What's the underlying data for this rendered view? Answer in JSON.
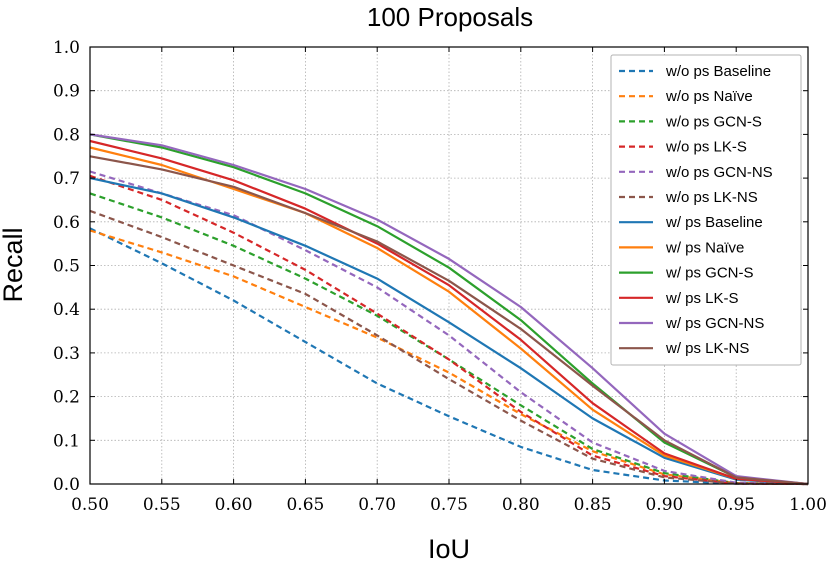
{
  "chart_data": {
    "type": "line",
    "title": "100 Proposals",
    "xlabel": "IoU",
    "ylabel": "Recall",
    "xlim": [
      0.5,
      1.0
    ],
    "ylim": [
      0.0,
      1.0
    ],
    "grid": true,
    "legend_position": "top-right",
    "x": [
      0.5,
      0.55,
      0.6,
      0.65,
      0.7,
      0.75,
      0.8,
      0.85,
      0.9,
      0.95,
      1.0
    ],
    "x_tick_labels": [
      "0.50",
      "0.55",
      "0.60",
      "0.65",
      "0.70",
      "0.75",
      "0.80",
      "0.85",
      "0.90",
      "0.95",
      "1.00"
    ],
    "y_ticks": [
      0.0,
      0.1,
      0.2,
      0.3,
      0.4,
      0.5,
      0.6,
      0.7,
      0.8,
      0.9,
      1.0
    ],
    "y_tick_labels": [
      "0.0",
      "0.1",
      "0.2",
      "0.3",
      "0.4",
      "0.5",
      "0.6",
      "0.7",
      "0.8",
      "0.9",
      "1.0"
    ],
    "series": [
      {
        "name": "w/o ps Baseline",
        "style": "dashed",
        "color": "#1f77b4",
        "values": [
          0.585,
          0.505,
          0.42,
          0.325,
          0.23,
          0.155,
          0.085,
          0.032,
          0.008,
          0.001,
          0.0
        ]
      },
      {
        "name": "w/o ps Naïve",
        "style": "dashed",
        "color": "#ff7f0e",
        "values": [
          0.58,
          0.53,
          0.475,
          0.405,
          0.335,
          0.255,
          0.16,
          0.075,
          0.022,
          0.002,
          0.0
        ]
      },
      {
        "name": "w/o ps GCN-S",
        "style": "dashed",
        "color": "#2ca02c",
        "values": [
          0.665,
          0.61,
          0.545,
          0.47,
          0.385,
          0.285,
          0.18,
          0.08,
          0.025,
          0.002,
          0.0
        ]
      },
      {
        "name": "w/o ps LK-S",
        "style": "dashed",
        "color": "#d62728",
        "values": [
          0.705,
          0.65,
          0.575,
          0.49,
          0.39,
          0.285,
          0.165,
          0.065,
          0.018,
          0.001,
          0.0
        ]
      },
      {
        "name": "w/o ps GCN-NS",
        "style": "dashed",
        "color": "#9467bd",
        "values": [
          0.715,
          0.665,
          0.615,
          0.535,
          0.45,
          0.34,
          0.21,
          0.095,
          0.03,
          0.003,
          0.0
        ]
      },
      {
        "name": "w/o ps LK-NS",
        "style": "dashed",
        "color": "#8c564b",
        "values": [
          0.625,
          0.565,
          0.5,
          0.435,
          0.34,
          0.24,
          0.145,
          0.058,
          0.015,
          0.001,
          0.0
        ]
      },
      {
        "name": "w/ ps Baseline",
        "style": "solid",
        "color": "#1f77b4",
        "values": [
          0.7,
          0.665,
          0.61,
          0.545,
          0.47,
          0.37,
          0.265,
          0.15,
          0.06,
          0.01,
          0.0
        ]
      },
      {
        "name": "w/ ps Naïve",
        "style": "solid",
        "color": "#ff7f0e",
        "values": [
          0.77,
          0.73,
          0.675,
          0.62,
          0.54,
          0.44,
          0.31,
          0.17,
          0.065,
          0.012,
          0.0
        ]
      },
      {
        "name": "w/ ps GCN-S",
        "style": "solid",
        "color": "#2ca02c",
        "values": [
          0.8,
          0.77,
          0.725,
          0.665,
          0.59,
          0.495,
          0.375,
          0.23,
          0.095,
          0.015,
          0.0
        ]
      },
      {
        "name": "w/ ps LK-S",
        "style": "solid",
        "color": "#d62728",
        "values": [
          0.785,
          0.745,
          0.695,
          0.63,
          0.55,
          0.455,
          0.33,
          0.185,
          0.07,
          0.012,
          0.0
        ]
      },
      {
        "name": "w/ ps GCN-NS",
        "style": "solid",
        "color": "#9467bd",
        "values": [
          0.8,
          0.775,
          0.73,
          0.675,
          0.605,
          0.515,
          0.405,
          0.265,
          0.115,
          0.018,
          0.0
        ]
      },
      {
        "name": "w/ ps LK-NS",
        "style": "solid",
        "color": "#8c564b",
        "values": [
          0.75,
          0.72,
          0.68,
          0.62,
          0.555,
          0.465,
          0.355,
          0.225,
          0.1,
          0.015,
          0.0
        ]
      }
    ]
  }
}
